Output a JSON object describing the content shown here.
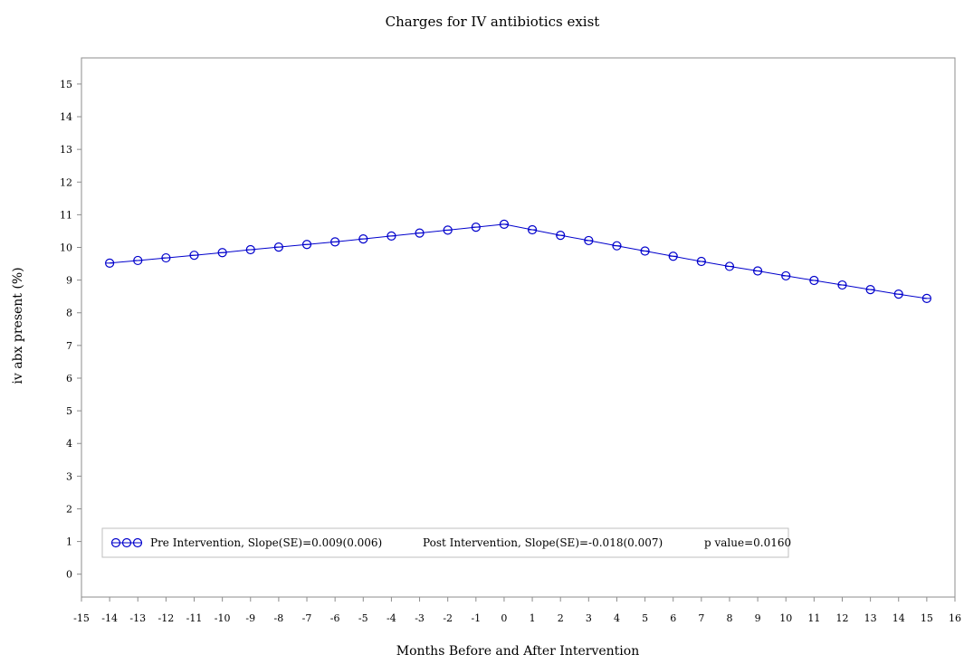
{
  "chart_data": {
    "type": "line",
    "title": "Charges for IV antibiotics exist",
    "xlabel": "Months Before and After Intervention",
    "ylabel": "iv abx present (%)",
    "xlim": [
      -15,
      16
    ],
    "ylim": [
      -0.7,
      15.8
    ],
    "x_ticks": [
      -15,
      -14,
      -13,
      -12,
      -11,
      -10,
      -9,
      -8,
      -7,
      -6,
      -5,
      -4,
      -3,
      -2,
      -1,
      0,
      1,
      2,
      3,
      4,
      5,
      6,
      7,
      8,
      9,
      10,
      11,
      12,
      13,
      14,
      15,
      16
    ],
    "y_ticks": [
      0,
      1,
      2,
      3,
      4,
      5,
      6,
      7,
      8,
      9,
      10,
      11,
      12,
      13,
      14,
      15
    ],
    "grid": false,
    "legend_position": "bottom-left",
    "series": [
      {
        "color": "#0000cc",
        "marker": "circle",
        "x": [
          -14,
          -13,
          -12,
          -11,
          -10,
          -9,
          -8,
          -7,
          -6,
          -5,
          -4,
          -3,
          -2,
          -1,
          0,
          1,
          2,
          3,
          4,
          5,
          6,
          7,
          8,
          9,
          10,
          11,
          12,
          13,
          14,
          15
        ],
        "y": [
          9.52,
          9.6,
          9.68,
          9.76,
          9.84,
          9.93,
          10.01,
          10.09,
          10.17,
          10.26,
          10.35,
          10.44,
          10.53,
          10.62,
          10.71,
          10.54,
          10.37,
          10.21,
          10.05,
          9.89,
          9.73,
          9.57,
          9.42,
          9.28,
          9.13,
          8.99,
          8.85,
          8.71,
          8.57,
          8.44
        ]
      }
    ],
    "legend": {
      "entries": [
        "Pre Intervention, Slope(SE)=0.009(0.006)",
        "Post Intervention, Slope(SE)=-0.018(0.007)",
        "p value=0.0160"
      ]
    }
  }
}
